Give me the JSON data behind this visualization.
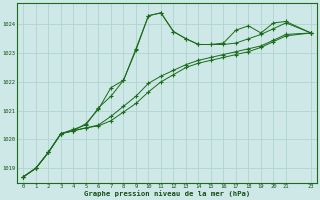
{
  "xlabel": "Graphe pression niveau de la mer (hPa)",
  "bg_color": "#cde8e6",
  "grid_color": "#b0d4d0",
  "line_color": "#1a6b1a",
  "text_color": "#145014",
  "ylim": [
    1018.5,
    1024.75
  ],
  "xlim": [
    -0.5,
    23.5
  ],
  "yticks": [
    1019,
    1020,
    1021,
    1022,
    1023,
    1024
  ],
  "xtick_pos": [
    0,
    1,
    2,
    3,
    4,
    5,
    6,
    7,
    8,
    9,
    10,
    11,
    12,
    13,
    14,
    15,
    16,
    17,
    18,
    19,
    20,
    21,
    23
  ],
  "xtick_labels": [
    "0",
    "1",
    "2",
    "3",
    "4",
    "5",
    "6",
    "7",
    "8",
    "9",
    "10",
    "11",
    "12",
    "13",
    "14",
    "15",
    "16",
    "17",
    "18",
    "19",
    "20",
    "21",
    "23"
  ],
  "series": [
    {
      "x": [
        0,
        1,
        2,
        3,
        4,
        5,
        6,
        7,
        8,
        9,
        10,
        11,
        12,
        13,
        14,
        15,
        16,
        17,
        18,
        19,
        20,
        21,
        23
      ],
      "y": [
        1018.7,
        1019.0,
        1019.55,
        1020.2,
        1020.3,
        1020.55,
        1021.05,
        1021.8,
        1022.05,
        1023.1,
        1024.3,
        1024.4,
        1023.75,
        1023.5,
        1023.3,
        1023.3,
        1023.3,
        1023.35,
        1023.5,
        1023.65,
        1023.85,
        1024.05,
        1023.7
      ]
    },
    {
      "x": [
        0,
        1,
        2,
        3,
        4,
        5,
        6,
        7,
        8,
        9,
        10,
        11,
        12,
        13,
        14,
        15,
        16,
        17,
        18,
        19,
        20,
        21,
        23
      ],
      "y": [
        1018.7,
        1019.0,
        1019.55,
        1020.2,
        1020.3,
        1020.4,
        1020.5,
        1020.8,
        1021.15,
        1021.5,
        1021.95,
        1022.2,
        1022.4,
        1022.6,
        1022.75,
        1022.85,
        1022.95,
        1023.05,
        1023.15,
        1023.25,
        1023.45,
        1023.65,
        1023.7
      ]
    },
    {
      "x": [
        0,
        1,
        2,
        3,
        4,
        5,
        6,
        7,
        8,
        9,
        10,
        11,
        12,
        13,
        14,
        15,
        16,
        17,
        18,
        19,
        20,
        21,
        23
      ],
      "y": [
        1018.7,
        1019.0,
        1019.55,
        1020.2,
        1020.3,
        1020.4,
        1020.47,
        1020.65,
        1020.95,
        1021.25,
        1021.65,
        1022.0,
        1022.25,
        1022.5,
        1022.65,
        1022.75,
        1022.85,
        1022.95,
        1023.05,
        1023.2,
        1023.4,
        1023.6,
        1023.7
      ]
    },
    {
      "x": [
        0,
        1,
        2,
        3,
        4,
        5,
        6,
        7,
        8,
        9,
        10,
        11,
        12,
        13,
        14,
        15,
        16,
        17,
        18,
        19,
        20,
        21,
        23
      ],
      "y": [
        1018.7,
        1019.0,
        1019.55,
        1020.2,
        1020.35,
        1020.5,
        1021.1,
        1021.5,
        1022.05,
        1023.15,
        1024.3,
        1024.4,
        1023.75,
        1023.5,
        1023.3,
        1023.3,
        1023.35,
        1023.8,
        1023.95,
        1023.7,
        1024.05,
        1024.1,
        1023.7
      ]
    }
  ]
}
